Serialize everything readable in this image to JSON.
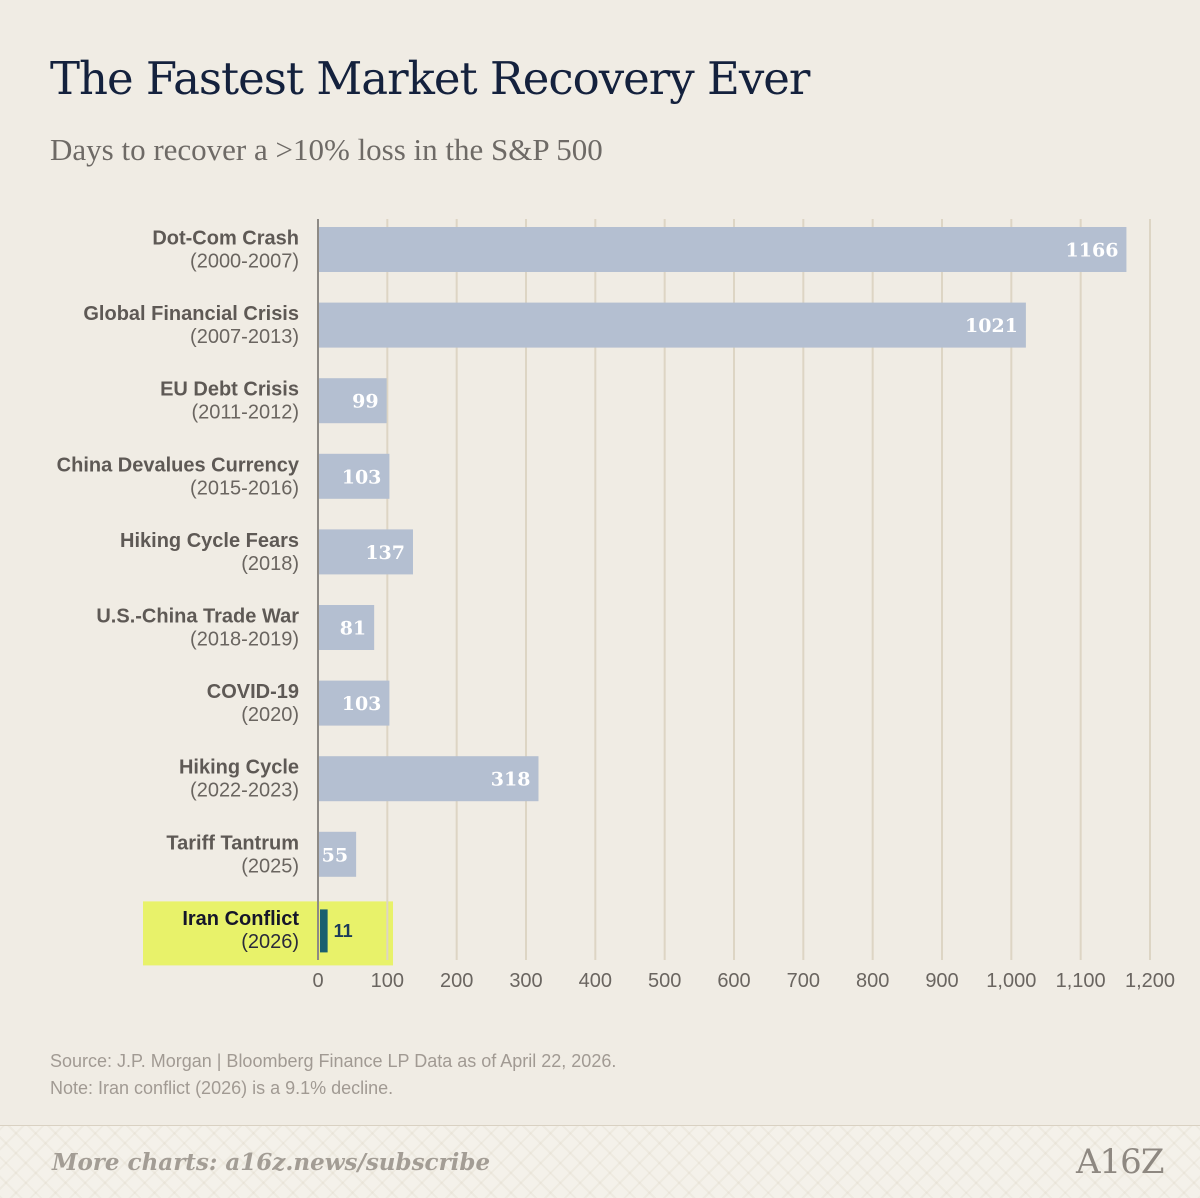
{
  "chart_data": {
    "type": "bar",
    "orientation": "horizontal",
    "title": "The Fastest Market Recovery Ever",
    "subtitle": "Days to recover a >10% loss in the S&P 500",
    "categories": [
      {
        "name": "Dot-Com Crash",
        "years": "(2000-2007)",
        "value": 1166,
        "label": "1166",
        "highlight": false
      },
      {
        "name": "Global Financial Crisis",
        "years": "(2007-2013)",
        "value": 1021,
        "label": "1021",
        "highlight": false
      },
      {
        "name": "EU Debt Crisis",
        "years": "(2011-2012)",
        "value": 99,
        "label": "99",
        "highlight": false
      },
      {
        "name": "China Devalues Currency",
        "years": "(2015-2016)",
        "value": 103,
        "label": "103",
        "highlight": false
      },
      {
        "name": "Hiking Cycle Fears",
        "years": "(2018)",
        "value": 137,
        "label": "137",
        "highlight": false
      },
      {
        "name": "U.S.-China Trade War",
        "years": "(2018-2019)",
        "value": 81,
        "label": "81",
        "highlight": false
      },
      {
        "name": "COVID-19",
        "years": "(2020)",
        "value": 103,
        "label": "103",
        "highlight": false
      },
      {
        "name": "Hiking Cycle",
        "years": "(2022-2023)",
        "value": 318,
        "label": "318",
        "highlight": false
      },
      {
        "name": "Tariff Tantrum",
        "years": "(2025)",
        "value": 55,
        "label": "55",
        "highlight": false
      },
      {
        "name": "Iran Conflict",
        "years": "(2026)",
        "value": 11,
        "label": "11",
        "highlight": true
      }
    ],
    "xlim": [
      0,
      1200
    ],
    "xticks": [
      0,
      100,
      200,
      300,
      400,
      500,
      600,
      700,
      800,
      900,
      1000,
      1100,
      1200
    ],
    "xtick_labels": [
      "0",
      "100",
      "200",
      "300",
      "400",
      "500",
      "600",
      "700",
      "800",
      "900",
      "1,000",
      "1,100",
      "1,200"
    ],
    "grid": "vertical",
    "colors": {
      "bar": "#b4bfd1",
      "highlight_bar": "#1a5f6f",
      "highlight_background": "#e8f26a",
      "grid": "#ddd5c4",
      "axis": "#8e8a85",
      "background": "#f0ece4"
    }
  },
  "source": "Source: J.P. Morgan | Bloomberg Finance LP Data as of April 22, 2026.",
  "note": "Note: Iran conflict (2026) is a 9.1% decline.",
  "cta": "More charts: a16z.news/subscribe",
  "logo_text": "A16Z"
}
